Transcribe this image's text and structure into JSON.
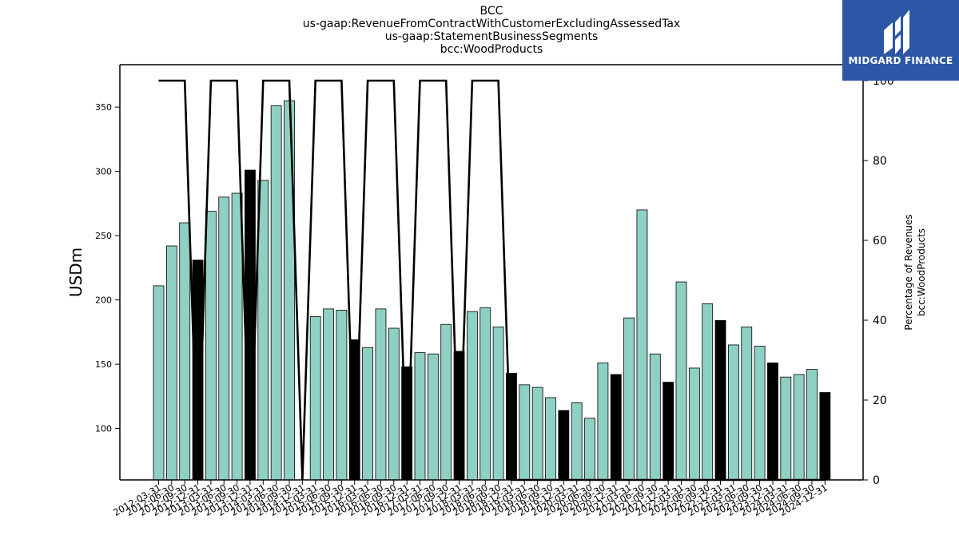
{
  "title_lines": [
    "BCC",
    "us-gaap:RevenueFromContractWithCustomerExcludingAssessedTax",
    "us-gaap:StatementBusinessSegments",
    "bcc:WoodProducts"
  ],
  "logo": {
    "text": "MIDGARD FINANCE",
    "background": "#2c57a7"
  },
  "chart_data": {
    "type": "bar",
    "title": "BCC\nus-gaap:RevenueFromContractWithCustomerExcludingAssessedTax\nus-gaap:StatementBusinessSegments\nbcc:WoodProducts",
    "ylabel": "USDm",
    "y2label": [
      "Percentage of Revenues",
      "bcc:WoodProducts"
    ],
    "ylim": [
      60,
      383
    ],
    "y2lim": [
      0,
      104
    ],
    "y_ticks": [
      100,
      150,
      200,
      250,
      300,
      350
    ],
    "y2_ticks": [
      0,
      20,
      40,
      60,
      80,
      100
    ],
    "grid": false,
    "colors": {
      "bar": "#8fd0c4",
      "highlight_bar": "#000000",
      "line": "#000000"
    },
    "categories": [
      "2012-03-31",
      "2012-06-30",
      "2012-09-30",
      "2012-12-31",
      "2013-03-31",
      "2013-06-30",
      "2013-09-30",
      "2013-12-31",
      "2014-03-31",
      "2014-06-30",
      "2014-09-30",
      "2014-12-31",
      "2015-03-31",
      "2015-06-30",
      "2015-09-30",
      "2015-12-31",
      "2016-03-31",
      "2016-06-30",
      "2016-09-30",
      "2016-12-31",
      "2017-03-31",
      "2017-06-30",
      "2017-09-30",
      "2017-12-31",
      "2018-03-31",
      "2018-06-30",
      "2018-09-30",
      "2018-12-31",
      "2019-03-31",
      "2019-06-30",
      "2019-09-30",
      "2019-12-31",
      "2020-03-31",
      "2020-06-30",
      "2020-09-30",
      "2020-12-31",
      "2021-03-31",
      "2021-06-30",
      "2021-09-30",
      "2021-12-31",
      "2022-03-31",
      "2022-06-30",
      "2022-09-30",
      "2022-12-31",
      "2023-03-31",
      "2023-06-30",
      "2023-09-30",
      "2023-12-31",
      "2024-03-31",
      "2024-06-30",
      "2024-09-30",
      "2024-12-31"
    ],
    "series": [
      {
        "type": "bar",
        "values": [
          211,
          242,
          260,
          231,
          269,
          280,
          283,
          301,
          293,
          351,
          355,
          null,
          187,
          193,
          192,
          169,
          163,
          193,
          178,
          148,
          159,
          158,
          181,
          160,
          191,
          194,
          179,
          143,
          134,
          132,
          124,
          114,
          120,
          108,
          151,
          142,
          186,
          270,
          158,
          136,
          214,
          147,
          197,
          184,
          165,
          179,
          164,
          151,
          140,
          142,
          146,
          128
        ],
        "highlight": [
          false,
          false,
          false,
          true,
          false,
          false,
          false,
          true,
          false,
          false,
          false,
          true,
          false,
          false,
          false,
          true,
          false,
          false,
          false,
          true,
          false,
          false,
          false,
          true,
          false,
          false,
          false,
          true,
          false,
          false,
          false,
          true,
          false,
          false,
          false,
          true,
          false,
          false,
          false,
          true,
          false,
          false,
          false,
          true,
          false,
          false,
          false,
          true,
          false,
          false,
          false,
          true
        ]
      },
      {
        "type": "line",
        "axis": "right",
        "values": [
          100,
          100,
          100,
          0,
          100,
          100,
          100,
          0,
          100,
          100,
          100,
          0,
          100,
          100,
          100,
          0,
          100,
          100,
          100,
          0,
          100,
          100,
          100,
          0,
          100,
          100,
          100,
          0,
          0,
          0,
          0,
          0,
          0,
          0,
          0,
          0,
          0,
          0,
          0,
          0,
          0,
          0,
          0,
          0,
          0,
          0,
          0,
          0,
          0,
          0,
          0,
          0
        ]
      }
    ]
  }
}
